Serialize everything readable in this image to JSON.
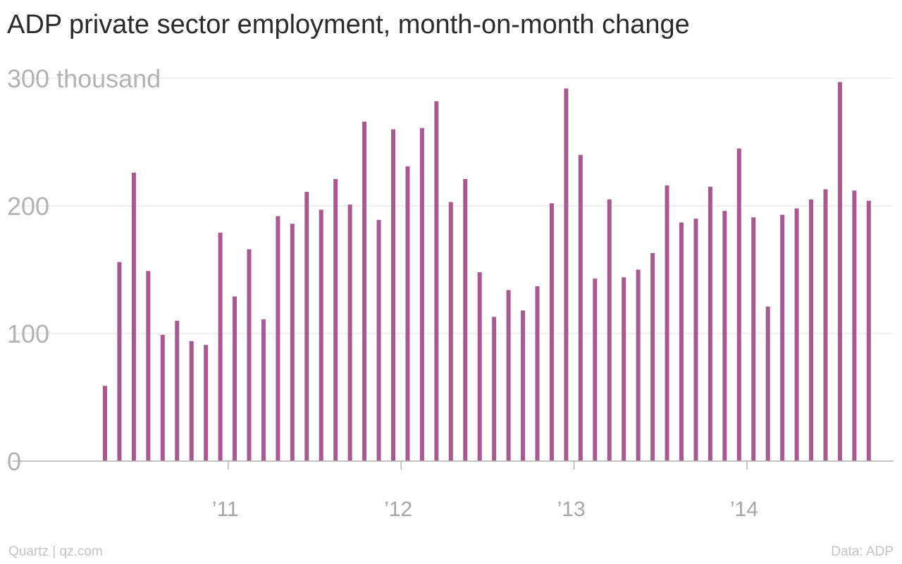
{
  "chart_data": {
    "type": "bar",
    "title": "ADP private sector employment, month-on-month change",
    "source": "Quartz | qz.com",
    "data_credit": "Data: ADP",
    "ylim": [
      0,
      300
    ],
    "y_ticks": [
      {
        "value": 0,
        "label": "0"
      },
      {
        "value": 100,
        "label": "100"
      },
      {
        "value": 200,
        "label": "200"
      },
      {
        "value": 300,
        "label": "300 thousand"
      }
    ],
    "x_ticks": [
      {
        "index": 9,
        "label": "’11"
      },
      {
        "index": 21,
        "label": "’12"
      },
      {
        "index": 33,
        "label": "’13"
      },
      {
        "index": 45,
        "label": "’14"
      }
    ],
    "categories": [
      "2010-04",
      "2010-05",
      "2010-06",
      "2010-07",
      "2010-08",
      "2010-09",
      "2010-10",
      "2010-11",
      "2010-12",
      "2011-01",
      "2011-02",
      "2011-03",
      "2011-04",
      "2011-05",
      "2011-06",
      "2011-07",
      "2011-08",
      "2011-09",
      "2011-10",
      "2011-11",
      "2011-12",
      "2012-01",
      "2012-02",
      "2012-03",
      "2012-04",
      "2012-05",
      "2012-06",
      "2012-07",
      "2012-08",
      "2012-09",
      "2012-10",
      "2012-11",
      "2012-12",
      "2013-01",
      "2013-02",
      "2013-03",
      "2013-04",
      "2013-05",
      "2013-06",
      "2013-07",
      "2013-08",
      "2013-09",
      "2013-10",
      "2013-11",
      "2013-12",
      "2014-01",
      "2014-02",
      "2014-03",
      "2014-04",
      "2014-05",
      "2014-06",
      "2014-07",
      "2014-08",
      "2014-09"
    ],
    "values": [
      59,
      156,
      226,
      149,
      99,
      110,
      94,
      91,
      179,
      129,
      166,
      111,
      192,
      186,
      211,
      197,
      221,
      201,
      266,
      189,
      260,
      231,
      261,
      282,
      203,
      221,
      148,
      113,
      134,
      118,
      137,
      202,
      292,
      240,
      143,
      205,
      144,
      150,
      163,
      216,
      187,
      190,
      215,
      196,
      245,
      191,
      121,
      193,
      198,
      205,
      213,
      297,
      212,
      204
    ],
    "bar_color": "#a85a8e",
    "grid_color": "#ececec",
    "axis_color": "#b0b0b0",
    "grid": true
  }
}
